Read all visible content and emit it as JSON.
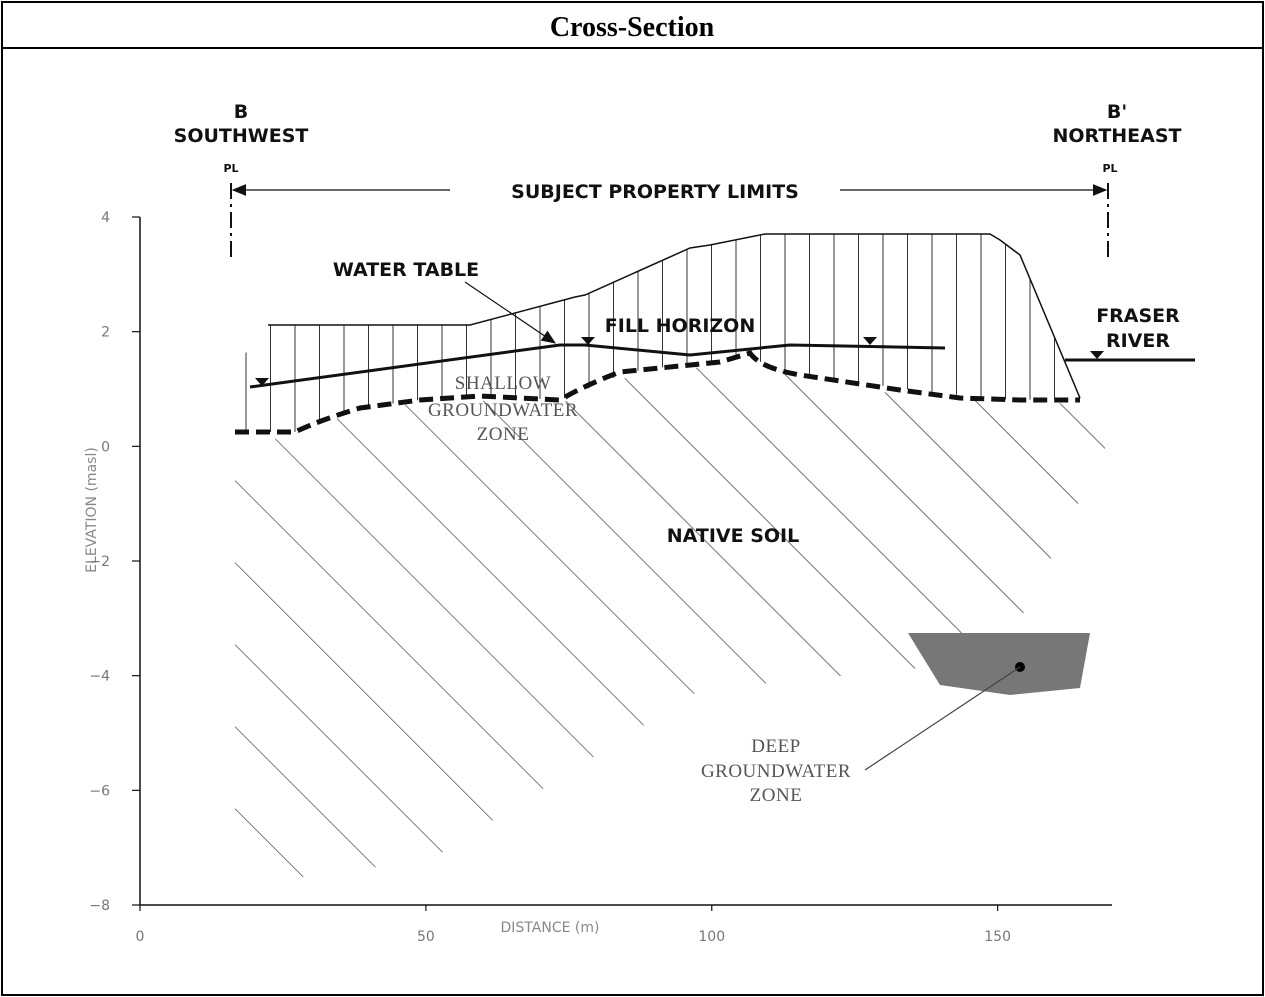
{
  "header": {
    "title": "Cross-Section"
  },
  "diagram": {
    "left_end": {
      "label": "B",
      "direction": "SOUTHWEST",
      "marker": "PL"
    },
    "right_end": {
      "label": "B'",
      "direction": "NORTHEAST",
      "marker": "PL"
    },
    "property_limits": "SUBJECT PROPERTY LIMITS",
    "water_table": "WATER  TABLE",
    "fill_horizon": "FILL HORIZON",
    "fraser_river": [
      "FRASER",
      "RIVER"
    ],
    "shallow_zone": [
      "SHALLOW",
      "GROUNDWATER",
      "ZONE"
    ],
    "native_soil": "NATIVE SOIL",
    "deep_zone": [
      "DEEP",
      "GROUNDWATER",
      "ZONE"
    ],
    "y_axis": {
      "label": "ELEVATION  (masl)",
      "ylim": [
        -8,
        4
      ],
      "ticks": [
        4,
        2,
        0,
        {
          "value": -2,
          "label": "−2"
        },
        {
          "value": -4,
          "label": "−4"
        },
        {
          "value": -6,
          "label": "−6"
        },
        {
          "value": -8,
          "label": "−8"
        }
      ]
    },
    "x_axis": {
      "label": "DISTANCE  (m)",
      "xlim": [
        0,
        170
      ],
      "ticks": [
        0,
        50,
        100,
        150
      ]
    }
  }
}
